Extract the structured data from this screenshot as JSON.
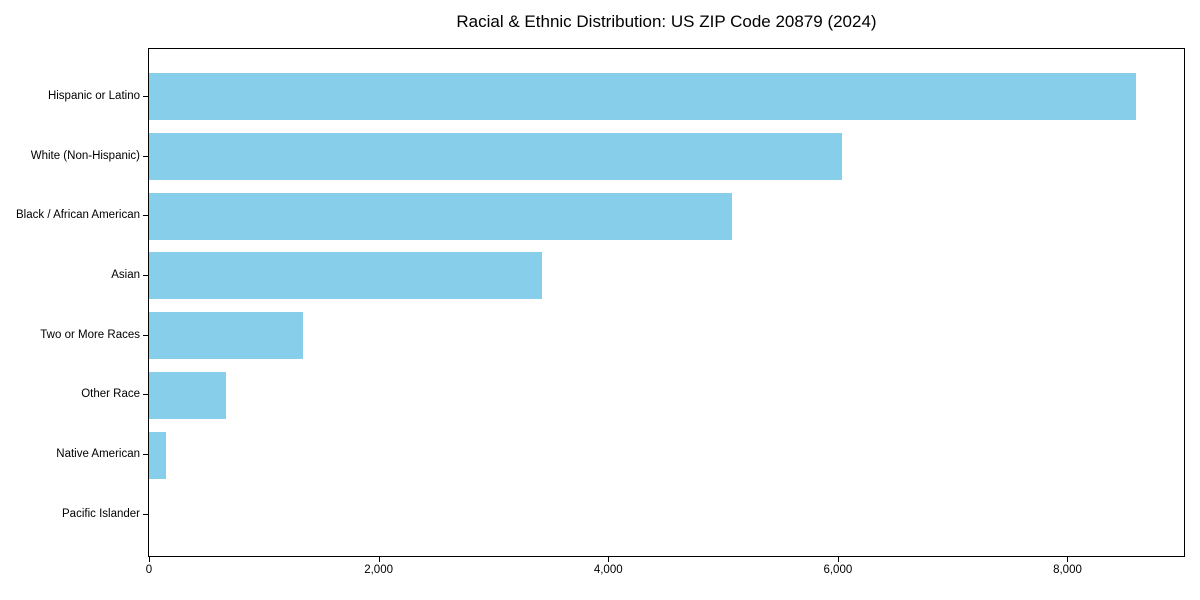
{
  "figure": {
    "background_color": "#FFFFFF",
    "axis_color": "#000000",
    "text_color": "#000000"
  },
  "chart_data": {
    "type": "bar",
    "orientation": "horizontal",
    "title": "Racial & Ethnic Distribution: US ZIP Code 20879 (2024)",
    "categories": [
      "Hispanic or Latino",
      "White (Non-Hispanic)",
      "Black / African American",
      "Asian",
      "Two or More Races",
      "Other Race",
      "Native American",
      "Pacific Islander"
    ],
    "values": [
      8600,
      6040,
      5080,
      3420,
      1340,
      670,
      145,
      0
    ],
    "bar_color": "#87CEEB",
    "xlabel": "",
    "ylabel": "",
    "xlim": [
      0,
      9015
    ],
    "xticks": [
      0,
      2000,
      4000,
      6000,
      8000
    ],
    "xtick_labels": [
      "0",
      "2,000",
      "4,000",
      "6,000",
      "8,000"
    ],
    "grid": false,
    "legend": false
  }
}
